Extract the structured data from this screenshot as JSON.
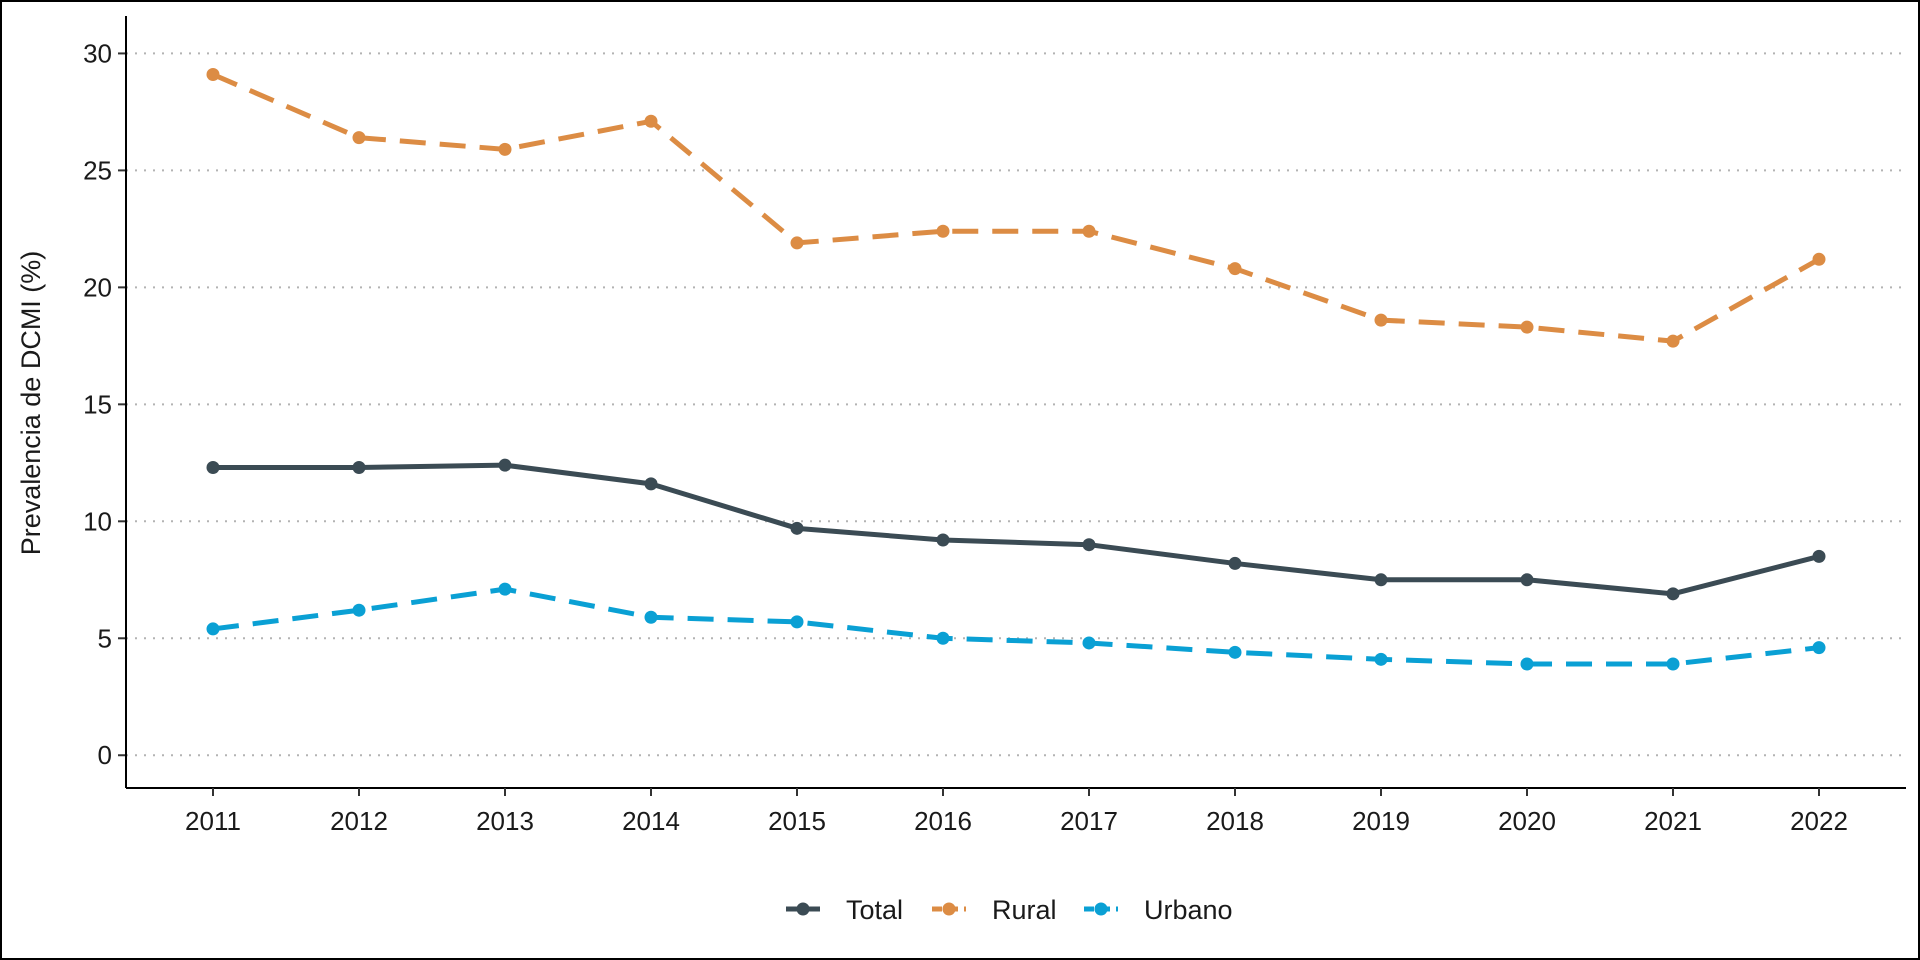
{
  "chart_data": {
    "type": "line",
    "title": "",
    "xlabel": "",
    "ylabel": "Prevalencia de DCMI (%)",
    "x": [
      "2011",
      "2012",
      "2013",
      "2014",
      "2015",
      "2016",
      "2017",
      "2018",
      "2019",
      "2020",
      "2021",
      "2022"
    ],
    "ylim": [
      -1.4,
      31.6
    ],
    "yticks": [
      0,
      5,
      10,
      15,
      20,
      25,
      30
    ],
    "grid": "horizontal dotted",
    "legend_position": "bottom",
    "series": [
      {
        "name": "Total",
        "color": "#3b4b54",
        "dash": "solid",
        "values": [
          12.3,
          12.3,
          12.4,
          11.6,
          9.7,
          9.2,
          9.0,
          8.2,
          7.5,
          7.5,
          6.9,
          8.5
        ]
      },
      {
        "name": "Rural",
        "color": "#dc8c44",
        "dash": "dashed",
        "values": [
          29.1,
          26.4,
          25.9,
          27.1,
          21.9,
          22.4,
          22.4,
          20.8,
          18.6,
          18.3,
          17.7,
          21.2
        ]
      },
      {
        "name": "Urbano",
        "color": "#0aa0d4",
        "dash": "dashed",
        "values": [
          5.4,
          6.2,
          7.1,
          5.9,
          5.7,
          5.0,
          4.8,
          4.4,
          4.1,
          3.9,
          3.9,
          4.6
        ]
      }
    ]
  }
}
